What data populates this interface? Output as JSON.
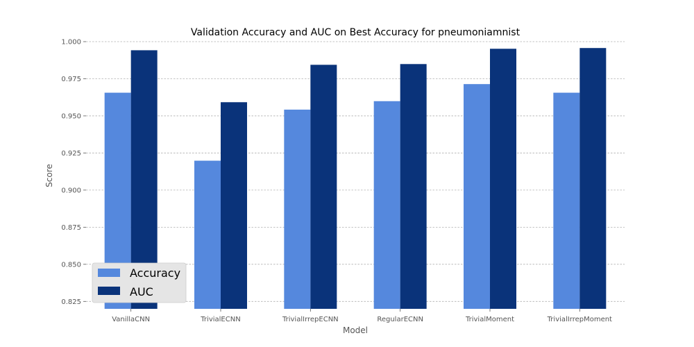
{
  "chart_data": {
    "type": "bar",
    "title": "Validation Accuracy and AUC on Best Accuracy for pneumoniamnist",
    "xlabel": "Model",
    "ylabel": "Score",
    "categories": [
      "VanillaCNN",
      "TrivialECNN",
      "TrivialIrrepECNN",
      "RegularECNN",
      "TrivialMoment",
      "TrivialIrrepMoment"
    ],
    "series": [
      {
        "name": "Accuracy",
        "color": "#5588dd",
        "values": [
          0.9656,
          0.9198,
          0.9542,
          0.9599,
          0.9714,
          0.9656
        ]
      },
      {
        "name": "AUC",
        "color": "#0a337a",
        "values": [
          0.9942,
          0.9592,
          0.9844,
          0.9849,
          0.9952,
          0.9957
        ]
      }
    ],
    "ylim": [
      0.82,
      1.0
    ],
    "yticks": [
      "0.825",
      "0.850",
      "0.875",
      "0.900",
      "0.925",
      "0.950",
      "0.975",
      "1.000"
    ],
    "grid": true,
    "legend_position": "lower-left"
  }
}
